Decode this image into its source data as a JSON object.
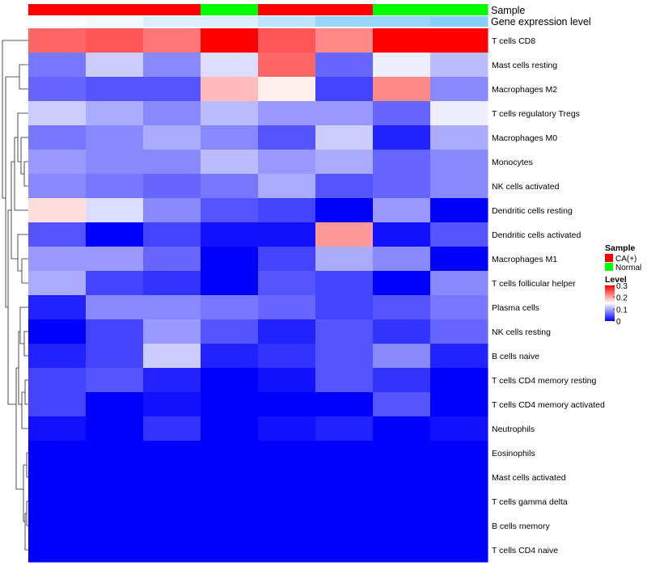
{
  "chart_data": {
    "type": "heatmap",
    "annotation_rows": [
      "Sample",
      "Gene expression level"
    ],
    "sample_groups": [
      "CA(+)",
      "CA(+)",
      "CA(+)",
      "Normal",
      "CA(+)",
      "CA(+)",
      "Normal",
      "Normal"
    ],
    "expression_levels": [
      0.05,
      0.12,
      0.3,
      0.3,
      0.55,
      0.85,
      0.85,
      1.0
    ],
    "rows": [
      "T cells CD8",
      "Mast cells resting",
      "Macrophages M2",
      "T cells regulatory  Tregs",
      "Macrophages M0",
      "Monocytes",
      "NK cells activated",
      "Dendritic cells resting",
      "Dendritic cells activated",
      "Macrophages M1",
      "T cells follicular helper",
      "Plasma cells",
      "NK cells resting",
      "B cells naive",
      "T cells CD4 memory resting",
      "T cells CD4 memory activated",
      "Neutrophils",
      "Eosinophils",
      "Mast cells activated",
      "T cells gamma delta",
      "B cells memory",
      "T cells CD4 naive"
    ],
    "values": [
      [
        0.24,
        0.25,
        0.23,
        0.3,
        0.25,
        0.22,
        0.3,
        0.3
      ],
      [
        0.07,
        0.12,
        0.08,
        0.13,
        0.24,
        0.06,
        0.14,
        0.11
      ],
      [
        0.06,
        0.05,
        0.05,
        0.19,
        0.16,
        0.04,
        0.22,
        0.08
      ],
      [
        0.12,
        0.1,
        0.08,
        0.11,
        0.09,
        0.09,
        0.06,
        0.14
      ],
      [
        0.07,
        0.08,
        0.1,
        0.08,
        0.05,
        0.12,
        0.02,
        0.1
      ],
      [
        0.09,
        0.08,
        0.08,
        0.11,
        0.09,
        0.1,
        0.06,
        0.08
      ],
      [
        0.08,
        0.07,
        0.06,
        0.07,
        0.1,
        0.05,
        0.06,
        0.08
      ],
      [
        0.17,
        0.13,
        0.08,
        0.05,
        0.04,
        0.0,
        0.09,
        0.0
      ],
      [
        0.05,
        0.0,
        0.04,
        0.01,
        0.01,
        0.21,
        0.01,
        0.05
      ],
      [
        0.09,
        0.09,
        0.06,
        0.0,
        0.04,
        0.1,
        0.08,
        0.0
      ],
      [
        0.1,
        0.04,
        0.03,
        0.0,
        0.05,
        0.04,
        0.0,
        0.08
      ],
      [
        0.02,
        0.08,
        0.08,
        0.07,
        0.06,
        0.04,
        0.05,
        0.07
      ],
      [
        0.0,
        0.04,
        0.09,
        0.05,
        0.02,
        0.05,
        0.03,
        0.06
      ],
      [
        0.02,
        0.04,
        0.12,
        0.02,
        0.03,
        0.05,
        0.08,
        0.02
      ],
      [
        0.04,
        0.05,
        0.02,
        0.0,
        0.01,
        0.05,
        0.03,
        0.0
      ],
      [
        0.04,
        0.0,
        0.01,
        0.0,
        0.0,
        0.0,
        0.05,
        0.0
      ],
      [
        0.01,
        0.0,
        0.03,
        0.0,
        0.01,
        0.02,
        0.0,
        0.01
      ],
      [
        0,
        0,
        0,
        0,
        0,
        0,
        0,
        0
      ],
      [
        0,
        0,
        0,
        0,
        0,
        0,
        0,
        0
      ],
      [
        0,
        0,
        0,
        0,
        0,
        0,
        0,
        0
      ],
      [
        0,
        0,
        0,
        0,
        0,
        0,
        0,
        0
      ],
      [
        0,
        0,
        0,
        0,
        0,
        0,
        0,
        0
      ]
    ],
    "color_scale": {
      "min": 0,
      "mid": 0.15,
      "max": 0.3,
      "low_color": "#0000ff",
      "mid_color": "#ffffff",
      "high_color": "#ff0000"
    },
    "legend": {
      "sample_title": "Sample",
      "sample_entries": [
        {
          "label": "CA(+)",
          "color": "#ff0000"
        },
        {
          "label": "Normal",
          "color": "#00ff00"
        }
      ],
      "level_title": "Level",
      "level_ticks": [
        "0.3",
        "0.2",
        "0.1",
        "0"
      ],
      "level_tick_values": [
        0.3,
        0.2,
        0.1,
        0
      ]
    },
    "group_colors": {
      "CA(+)": "#ff0000",
      "Normal": "#00ff00"
    },
    "expression_color_low": "#ffffff",
    "expression_color_high": "#87cefa",
    "row_dendrogram": true
  }
}
